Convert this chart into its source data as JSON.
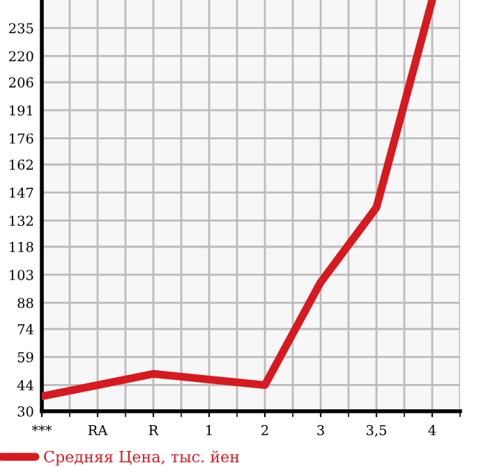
{
  "chart_data": {
    "type": "line",
    "categories": [
      "***",
      "RA",
      "R",
      "1",
      "2",
      "3",
      "3,5",
      "4"
    ],
    "series": [
      {
        "name": "Средняя Цена, тыс. йен",
        "color": "#d71920",
        "values": [
          38,
          44,
          50,
          47,
          44,
          99,
          139,
          250
        ]
      }
    ],
    "ylim": [
      30,
      250
    ],
    "yticks": [
      30,
      44,
      59,
      74,
      88,
      103,
      118,
      132,
      147,
      162,
      176,
      191,
      206,
      220,
      235
    ],
    "grid": true,
    "legend": "bottom left",
    "marker": "none",
    "line_style": "solid"
  }
}
